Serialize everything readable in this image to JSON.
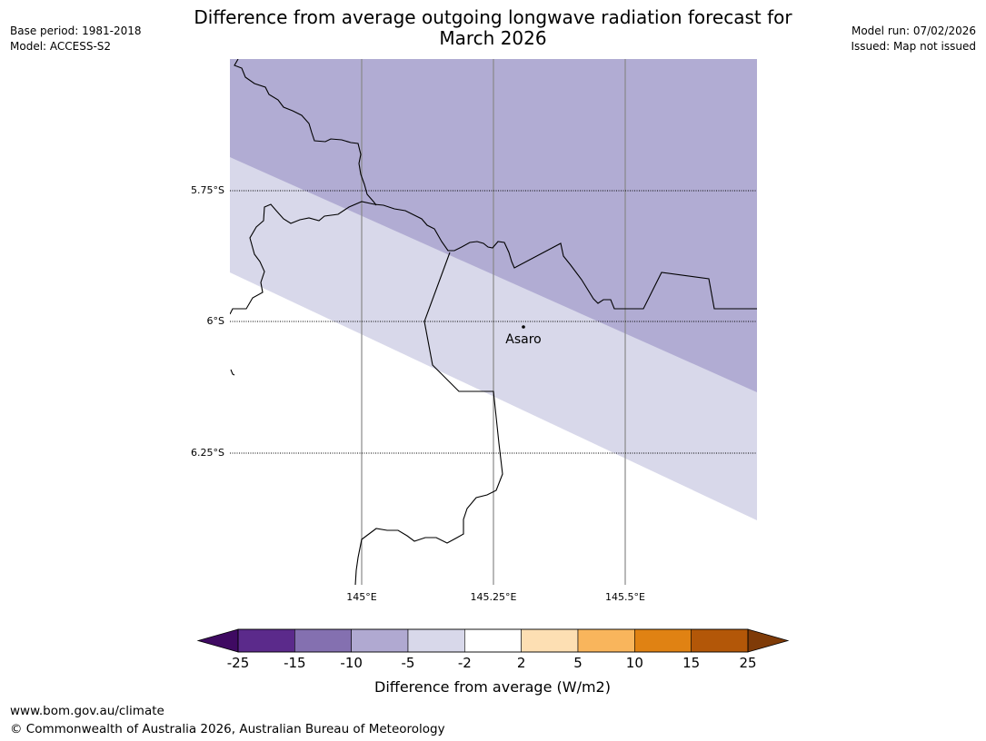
{
  "header": {
    "title_line1": "Difference from average outgoing longwave radiation forecast for",
    "title_line2": "March 2026",
    "base_period": "Base period: 1981-2018",
    "model": "Model: ACCESS-S2",
    "model_run": "Model run: 07/02/2026",
    "issued": "Issued: Map not issued"
  },
  "map": {
    "lat_labels": [
      "5.75°S",
      "6°S",
      "6.25°S"
    ],
    "lon_labels": [
      "145°E",
      "145.25°E",
      "145.5°E"
    ],
    "place": {
      "name": "Asaro",
      "lat": -6.01,
      "lon": 145.3
    }
  },
  "colorbar": {
    "ticks": [
      "-25",
      "-15",
      "-10",
      "-5",
      "-2",
      "2",
      "5",
      "10",
      "15",
      "25"
    ],
    "colors": [
      "#3f0a62",
      "#5b2a8b",
      "#8470b0",
      "#b0a9d1",
      "#d8d8ea",
      "#ffffff",
      "#fddfb3",
      "#f9b55c",
      "#e08213",
      "#b35708",
      "#7f3b08"
    ],
    "label": "Difference from average (W/m2)"
  },
  "footer": {
    "url": "www.bom.gov.au/climate",
    "copyright": "© Commonwealth of Australia 2026, Australian Bureau of Meteorology"
  }
}
